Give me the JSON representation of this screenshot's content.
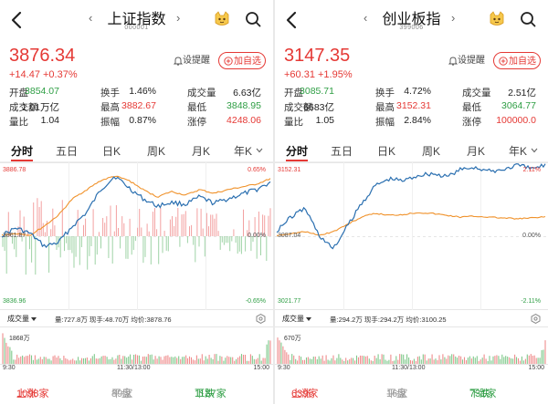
{
  "panels": [
    {
      "nav_left": "‹",
      "nav_right": "›",
      "title": "上证指数",
      "code": "000001",
      "price": "3876.34",
      "change": "+14.47  +0.37%",
      "alert_label": "设提醒",
      "add_label": "加自选",
      "stats": [
        [
          {
            "l": "开盘",
            "v": "3854.07",
            "c": "green"
          },
          {
            "l": "换手",
            "v": "1.46%",
            "c": "dark"
          },
          {
            "l": "成交量",
            "v": "6.63亿",
            "c": "dark"
          }
        ],
        [
          {
            "l": "成交额",
            "v": "1.01万亿",
            "c": "dark"
          },
          {
            "l": "最高",
            "v": "3882.67",
            "c": "red"
          },
          {
            "l": "最低",
            "v": "3848.95",
            "c": "green"
          }
        ],
        [
          {
            "l": "量比",
            "v": "1.04",
            "c": "dark"
          },
          {
            "l": "振幅",
            "v": "0.87%",
            "c": "dark"
          },
          {
            "l": "涨停",
            "v": "4248.06",
            "c": "red"
          }
        ]
      ],
      "tabs": [
        "分时",
        "五日",
        "日K",
        "周K",
        "月K",
        "年K"
      ],
      "active_tab": 0,
      "chart": {
        "y_high": "3886.78",
        "y_mid": "3861.87",
        "y_low": "3836.96",
        "pct_high": "0.65%",
        "pct_mid": "0.00%",
        "pct_low": "-0.65%"
      },
      "volume": {
        "selector": "成交量",
        "info": "量:727.8万  现手:48.70万  均价:3878.76",
        "max_label": "1868万"
      },
      "times": [
        "9:30",
        "11:30/13:00",
        "15:00"
      ],
      "breadth": {
        "up_label": "上涨",
        "up": "1098家",
        "flat_label": "平盘",
        "flat": "89家",
        "down_label": "下跌",
        "down": "1137家"
      }
    },
    {
      "nav_left": "‹",
      "nav_right": "›",
      "title": "创业板指",
      "code": "399006",
      "price": "3147.35",
      "change": "+60.31  +1.95%",
      "alert_label": "设提醒",
      "add_label": "加自选",
      "stats": [
        [
          {
            "l": "开盘",
            "v": "3085.71",
            "c": "green"
          },
          {
            "l": "换手",
            "v": "4.72%",
            "c": "dark"
          },
          {
            "l": "成交量",
            "v": "2.51亿",
            "c": "dark"
          }
        ],
        [
          {
            "l": "成交额",
            "v": "6683亿",
            "c": "dark"
          },
          {
            "l": "最高",
            "v": "3152.31",
            "c": "red"
          },
          {
            "l": "最低",
            "v": "3064.77",
            "c": "green"
          }
        ],
        [
          {
            "l": "量比",
            "v": "1.05",
            "c": "dark"
          },
          {
            "l": "振幅",
            "v": "2.84%",
            "c": "dark"
          },
          {
            "l": "涨停",
            "v": "100000.0",
            "c": "red"
          }
        ]
      ],
      "tabs": [
        "分时",
        "五日",
        "日K",
        "周K",
        "月K",
        "年K"
      ],
      "active_tab": 0,
      "chart": {
        "y_high": "3152.31",
        "y_mid": "3087.04",
        "y_low": "3021.77",
        "pct_high": "2.11%",
        "pct_mid": "0.00%",
        "pct_low": "-2.11%"
      },
      "volume": {
        "selector": "成交量",
        "info": "量:294.2万  现手:294.2万  均价:3100.25",
        "max_label": "670万"
      },
      "times": [
        "9:30",
        "11:30/13:00",
        "15:00"
      ],
      "breadth": {
        "up_label": "上涨",
        "up": "639家",
        "flat_label": "平盘",
        "flat": "16家",
        "down_label": "下跌",
        "down": "731家"
      }
    }
  ],
  "colors": {
    "up_red": "#e53935",
    "down_green": "#2e9e44",
    "price_line": "#2a6fb0",
    "avg_line": "#f0922b"
  },
  "icons": {
    "back": "chevron-left-icon",
    "avatar": "cat-avatar-icon",
    "search": "search-icon",
    "alert": "bell-icon",
    "add": "plus-circle-icon",
    "volume_settings": "gear-icon"
  }
}
